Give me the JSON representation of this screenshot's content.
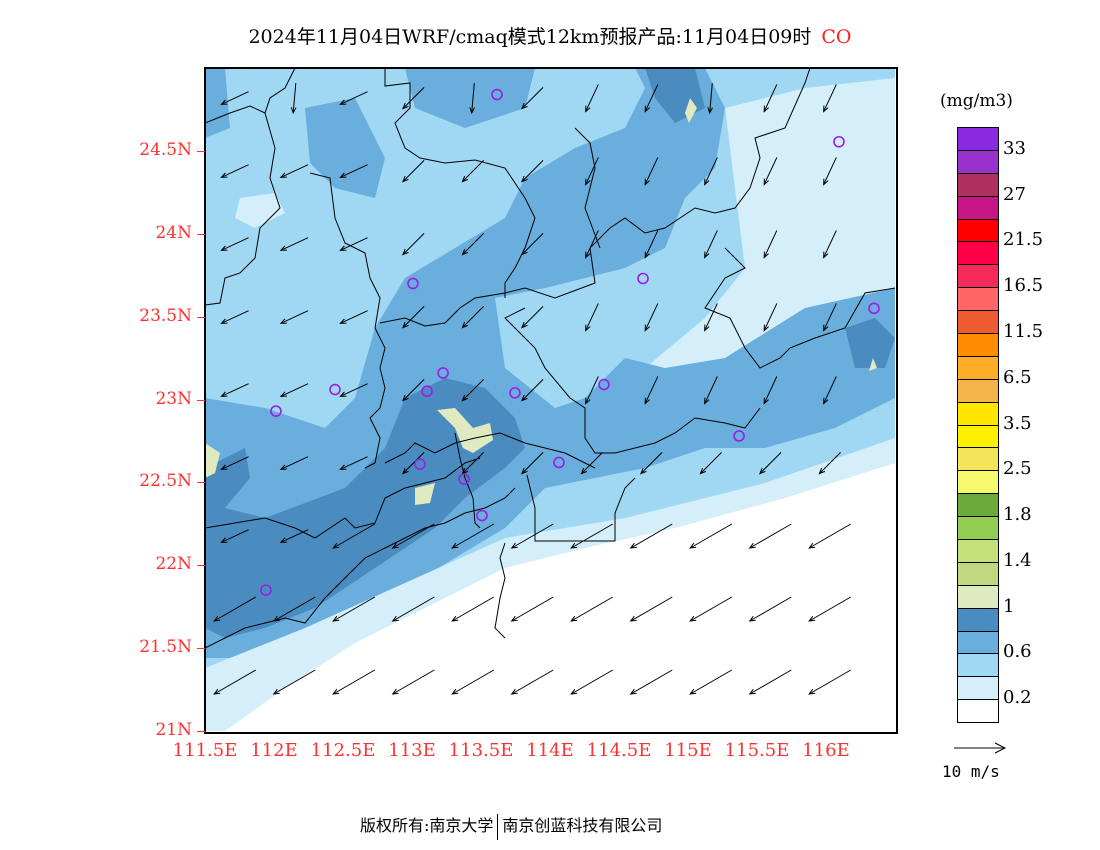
{
  "title": "2024年11月04日WRF/cmaq模式12km预报产品:11月04日09时",
  "species": "CO",
  "map": {
    "lon_range": [
      111.5,
      116.5
    ],
    "lat_range": [
      21.0,
      25.0
    ],
    "lat_labels": [
      {
        "lat": 24.5,
        "label": "24.5N"
      },
      {
        "lat": 24,
        "label": "24N"
      },
      {
        "lat": 23.5,
        "label": "23.5N"
      },
      {
        "lat": 23,
        "label": "23N"
      },
      {
        "lat": 22.5,
        "label": "22.5N"
      },
      {
        "lat": 22,
        "label": "22N"
      },
      {
        "lat": 21.5,
        "label": "21.5N"
      },
      {
        "lat": 21,
        "label": "21N"
      }
    ],
    "lon_labels": [
      {
        "lon": 111.5,
        "label": "111.5E"
      },
      {
        "lon": 112,
        "label": "112E"
      },
      {
        "lon": 112.5,
        "label": "112.5E"
      },
      {
        "lon": 113,
        "label": "113E"
      },
      {
        "lon": 113.5,
        "label": "113.5E"
      },
      {
        "lon": 114,
        "label": "114E"
      },
      {
        "lon": 114.5,
        "label": "114.5E"
      },
      {
        "lon": 115,
        "label": "115E"
      },
      {
        "lon": 115.5,
        "label": "115.5E"
      },
      {
        "lon": 116,
        "label": "116E"
      }
    ],
    "stations": [
      [
        113.616,
        24.84
      ],
      [
        116.094,
        24.555
      ],
      [
        113.007,
        23.7
      ],
      [
        114.674,
        23.73
      ],
      [
        116.348,
        23.55
      ],
      [
        112.442,
        23.06
      ],
      [
        112.014,
        22.93
      ],
      [
        113.109,
        23.05
      ],
      [
        113.225,
        23.16
      ],
      [
        113.746,
        23.04
      ],
      [
        114.391,
        23.09
      ],
      [
        113.058,
        22.61
      ],
      [
        113.377,
        22.52
      ],
      [
        114.065,
        22.62
      ],
      [
        113.507,
        22.3
      ],
      [
        115.37,
        22.78
      ],
      [
        111.942,
        21.85
      ]
    ],
    "station_color": "#9a1ee8",
    "wind_direction": "northeasterly"
  },
  "legend": {
    "unit": "(mg/m3)",
    "colors": [
      "#8a2be2",
      "#9932cc",
      "#b03060",
      "#c71585",
      "#ff0000",
      "#ff0048",
      "#f52a5a",
      "#ff6666",
      "#f05a30",
      "#ff8c00",
      "#ffad26",
      "#f5b44a",
      "#ffe600",
      "#fff000",
      "#f4e45a",
      "#f4f86a",
      "#6aaa3a",
      "#90cd50",
      "#c4e07a",
      "#c0d880",
      "#e0eac0",
      "#4a8cc0",
      "#6aaede",
      "#a0d8f4",
      "#d4eefa",
      "#ffffff"
    ],
    "labels": [
      "33",
      "27",
      "21.5",
      "16.5",
      "11.5",
      "6.5",
      "3.5",
      "2.5",
      "1.8",
      "1.4",
      "1",
      "0.6",
      "0.2"
    ]
  },
  "wind_reference": "10 m/s",
  "footer": {
    "left": "版权所有:南京大学",
    "right": "南京创蓝科技有限公司"
  }
}
